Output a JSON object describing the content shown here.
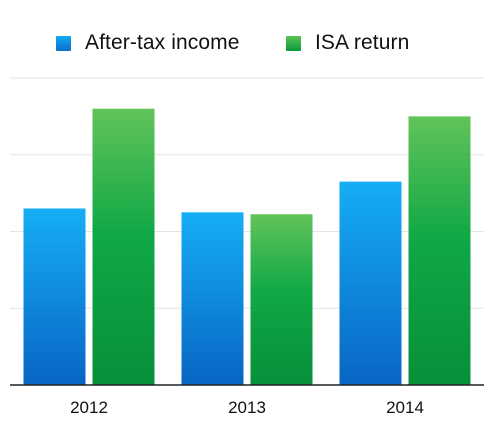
{
  "chart_data": {
    "type": "bar",
    "categories": [
      "2012",
      "2013",
      "2014"
    ],
    "series": [
      {
        "name": "After-tax income",
        "values": [
          46,
          45,
          53
        ],
        "color": "#1a8fe0"
      },
      {
        "name": "ISA return",
        "values": [
          72,
          44.5,
          70
        ],
        "color": "#1faa3a"
      }
    ],
    "ylim": [
      0,
      80
    ],
    "gridlines": [
      20,
      40,
      60,
      80
    ],
    "grid": true,
    "y_tick_labels_shown": false,
    "legend_position": "top"
  }
}
